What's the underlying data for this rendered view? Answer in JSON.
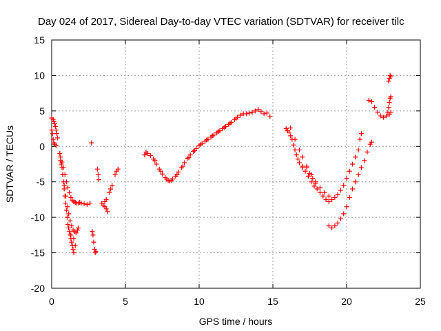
{
  "chart_data": {
    "type": "scatter",
    "title": "Day 024 of 2017, Sidereal Day-to-day VTEC variation (SDTVAR) for receiver tilc",
    "xlabel": "GPS time / hours",
    "ylabel": "SDTVAR / TECUs",
    "xlim": [
      0,
      25
    ],
    "ylim": [
      -20,
      15
    ],
    "xticks": [
      "0",
      "5",
      "10",
      "15",
      "20",
      "25"
    ],
    "yticks": [
      "15",
      "10",
      "5",
      "0",
      "-5",
      "-10",
      "-15",
      "-20"
    ],
    "grid": true,
    "marker": "plus",
    "color": "#ff0000",
    "series": [
      {
        "points": [
          [
            0.0,
            4.0
          ],
          [
            0.1,
            3.8
          ],
          [
            0.15,
            3.5
          ],
          [
            0.2,
            3.2
          ],
          [
            0.25,
            2.8
          ],
          [
            0.3,
            2.3
          ],
          [
            0.35,
            1.8
          ],
          [
            0.4,
            1.2
          ],
          [
            0.0,
            2.3
          ],
          [
            0.05,
            1.8
          ],
          [
            0.1,
            1.0
          ],
          [
            0.15,
            0.5
          ],
          [
            0.2,
            0.3
          ],
          [
            0.3,
            0.1
          ],
          [
            0.55,
            -1.0
          ],
          [
            0.6,
            -2.0
          ],
          [
            0.7,
            -3.0
          ],
          [
            0.75,
            -4.0
          ],
          [
            0.8,
            -5.0
          ],
          [
            0.85,
            -6.0
          ],
          [
            0.9,
            -7.0
          ],
          [
            0.95,
            -8.0
          ],
          [
            1.0,
            -9.0
          ],
          [
            1.05,
            -10.0
          ],
          [
            1.1,
            -11.0
          ],
          [
            1.15,
            -11.5
          ],
          [
            1.2,
            -12.0
          ],
          [
            1.25,
            -12.5
          ],
          [
            1.3,
            -13.0
          ],
          [
            1.35,
            -13.5
          ],
          [
            1.4,
            -14.0
          ],
          [
            1.45,
            -14.5
          ],
          [
            1.5,
            -15.0
          ],
          [
            0.6,
            -1.5
          ],
          [
            0.7,
            -2.2
          ],
          [
            0.8,
            -3.0
          ],
          [
            0.9,
            -4.0
          ],
          [
            1.0,
            -5.0
          ],
          [
            1.1,
            -5.8
          ],
          [
            1.2,
            -6.5
          ],
          [
            1.3,
            -7.2
          ],
          [
            1.4,
            -7.6
          ],
          [
            1.5,
            -7.8
          ],
          [
            1.6,
            -7.9
          ],
          [
            1.7,
            -8.0
          ],
          [
            1.8,
            -8.0
          ],
          [
            1.9,
            -7.9
          ],
          [
            2.0,
            -8.0
          ],
          [
            2.2,
            -8.1
          ],
          [
            2.4,
            -8.2
          ],
          [
            2.6,
            -8.0
          ],
          [
            0.65,
            -2.5
          ],
          [
            0.75,
            -4.0
          ],
          [
            0.85,
            -5.5
          ],
          [
            0.95,
            -7.0
          ],
          [
            1.05,
            -8.5
          ],
          [
            1.15,
            -9.5
          ],
          [
            1.25,
            -10.5
          ],
          [
            1.35,
            -11.2
          ],
          [
            1.45,
            -11.8
          ],
          [
            1.55,
            -12.0
          ],
          [
            1.65,
            -12.2
          ],
          [
            1.75,
            -11.8
          ],
          [
            1.8,
            -11.5
          ],
          [
            1.3,
            -12.5
          ],
          [
            1.5,
            -13.0
          ],
          [
            1.6,
            -14.0
          ],
          [
            2.7,
            0.5
          ],
          [
            2.75,
            -12.0
          ],
          [
            2.8,
            -12.5
          ],
          [
            2.85,
            -13.5
          ],
          [
            2.9,
            -14.5
          ],
          [
            2.95,
            -15.0
          ],
          [
            3.0,
            -14.8
          ],
          [
            3.1,
            -3.2
          ],
          [
            3.15,
            -4.0
          ],
          [
            3.2,
            -4.7
          ],
          [
            3.4,
            -8.0
          ],
          [
            3.5,
            -8.3
          ],
          [
            3.6,
            -8.5
          ],
          [
            3.7,
            -8.8
          ],
          [
            3.8,
            -9.2
          ],
          [
            3.6,
            -7.8
          ],
          [
            3.7,
            -7.5
          ],
          [
            3.9,
            -6.5
          ],
          [
            4.0,
            -6.0
          ],
          [
            4.1,
            -5.5
          ],
          [
            4.3,
            -4.0
          ],
          [
            4.4,
            -3.5
          ],
          [
            4.5,
            -3.2
          ],
          [
            6.3,
            -1.2
          ],
          [
            6.4,
            -0.8
          ],
          [
            6.5,
            -1.0
          ],
          [
            6.7,
            -1.3
          ],
          [
            6.9,
            -1.8
          ],
          [
            7.1,
            -2.5
          ],
          [
            7.3,
            -3.2
          ],
          [
            7.5,
            -3.9
          ],
          [
            7.7,
            -4.4
          ],
          [
            7.9,
            -4.8
          ],
          [
            8.0,
            -4.9
          ],
          [
            8.2,
            -4.6
          ],
          [
            8.4,
            -4.2
          ],
          [
            8.6,
            -3.6
          ],
          [
            8.8,
            -3.0
          ],
          [
            9.0,
            -2.3
          ],
          [
            9.2,
            -1.7
          ],
          [
            9.4,
            -1.2
          ],
          [
            9.6,
            -0.7
          ],
          [
            9.8,
            -0.3
          ],
          [
            10.0,
            0.1
          ],
          [
            10.2,
            0.4
          ],
          [
            10.4,
            0.7
          ],
          [
            10.6,
            1.0
          ],
          [
            10.8,
            1.3
          ],
          [
            11.0,
            1.6
          ],
          [
            11.2,
            1.9
          ],
          [
            11.4,
            2.2
          ],
          [
            11.6,
            2.5
          ],
          [
            11.8,
            2.8
          ],
          [
            12.0,
            3.1
          ],
          [
            12.2,
            3.4
          ],
          [
            12.4,
            3.8
          ],
          [
            12.6,
            4.1
          ],
          [
            12.8,
            4.4
          ],
          [
            13.0,
            4.6
          ],
          [
            13.2,
            4.6
          ],
          [
            13.4,
            4.7
          ],
          [
            13.6,
            4.8
          ],
          [
            13.8,
            5.0
          ],
          [
            14.0,
            5.2
          ],
          [
            14.2,
            4.9
          ],
          [
            14.4,
            4.6
          ],
          [
            14.6,
            4.7
          ],
          [
            14.8,
            4.2
          ],
          [
            7.0,
            -2.0
          ],
          [
            7.4,
            -3.5
          ],
          [
            7.8,
            -4.6
          ],
          [
            8.1,
            -4.8
          ],
          [
            8.5,
            -4.0
          ],
          [
            8.9,
            -2.8
          ],
          [
            9.3,
            -1.6
          ],
          [
            9.7,
            -0.6
          ],
          [
            10.1,
            0.3
          ],
          [
            10.5,
            0.9
          ],
          [
            10.9,
            1.5
          ],
          [
            11.3,
            2.1
          ],
          [
            11.7,
            2.7
          ],
          [
            12.1,
            3.3
          ],
          [
            12.5,
            3.9
          ],
          [
            15.9,
            2.5
          ],
          [
            16.0,
            2.2
          ],
          [
            16.1,
            2.0
          ],
          [
            16.2,
            1.5
          ],
          [
            16.3,
            1.0
          ],
          [
            16.4,
            0.2
          ],
          [
            16.5,
            -0.5
          ],
          [
            16.6,
            -1.2
          ],
          [
            16.7,
            -1.8
          ],
          [
            16.8,
            -2.3
          ],
          [
            17.0,
            -2.8
          ],
          [
            17.2,
            -3.5
          ],
          [
            17.4,
            -4.2
          ],
          [
            17.6,
            -5.0
          ],
          [
            17.8,
            -5.6
          ],
          [
            18.0,
            -6.0
          ],
          [
            18.2,
            -6.5
          ],
          [
            18.4,
            -7.0
          ],
          [
            18.6,
            -7.5
          ],
          [
            18.8,
            -7.8
          ],
          [
            19.0,
            -7.5
          ],
          [
            19.2,
            -7.2
          ],
          [
            19.4,
            -6.8
          ],
          [
            19.6,
            -6.2
          ],
          [
            19.8,
            -5.5
          ],
          [
            20.0,
            -4.5
          ],
          [
            20.2,
            -3.5
          ],
          [
            20.4,
            -2.5
          ],
          [
            20.6,
            -1.5
          ],
          [
            20.8,
            -0.5
          ],
          [
            20.9,
            1.0
          ],
          [
            21.0,
            1.8
          ],
          [
            16.2,
            2.6
          ],
          [
            16.5,
            1.0
          ],
          [
            16.8,
            -0.5
          ],
          [
            17.0,
            -1.5
          ],
          [
            17.3,
            -3.0
          ],
          [
            17.6,
            -4.0
          ],
          [
            17.9,
            -5.0
          ],
          [
            18.2,
            -5.8
          ],
          [
            18.5,
            -6.5
          ],
          [
            18.8,
            -7.0
          ],
          [
            17.0,
            -3.0
          ],
          [
            17.3,
            -2.8
          ],
          [
            17.5,
            -3.8
          ],
          [
            17.7,
            -4.5
          ],
          [
            17.9,
            -5.2
          ],
          [
            18.8,
            -11.2
          ],
          [
            19.0,
            -11.5
          ],
          [
            19.2,
            -11.2
          ],
          [
            19.4,
            -10.8
          ],
          [
            19.6,
            -10.2
          ],
          [
            19.8,
            -9.5
          ],
          [
            20.0,
            -8.5
          ],
          [
            20.2,
            -7.2
          ],
          [
            20.4,
            -6.0
          ],
          [
            20.6,
            -5.0
          ],
          [
            20.8,
            -4.0
          ],
          [
            21.0,
            -3.0
          ],
          [
            21.2,
            -2.0
          ],
          [
            21.4,
            -0.8
          ],
          [
            21.6,
            0.3
          ],
          [
            21.7,
            0.6
          ],
          [
            21.5,
            6.5
          ],
          [
            21.7,
            6.3
          ],
          [
            21.9,
            5.5
          ],
          [
            22.1,
            4.8
          ],
          [
            22.3,
            4.3
          ],
          [
            22.5,
            4.1
          ],
          [
            22.7,
            4.3
          ],
          [
            22.8,
            4.8
          ],
          [
            22.85,
            5.5
          ],
          [
            22.9,
            6.2
          ],
          [
            22.95,
            6.8
          ],
          [
            23.0,
            7.0
          ],
          [
            22.9,
            4.5
          ],
          [
            23.0,
            4.8
          ],
          [
            22.85,
            9.2
          ],
          [
            22.9,
            9.6
          ],
          [
            22.95,
            10.0
          ],
          [
            23.0,
            9.8
          ]
        ]
      }
    ]
  }
}
